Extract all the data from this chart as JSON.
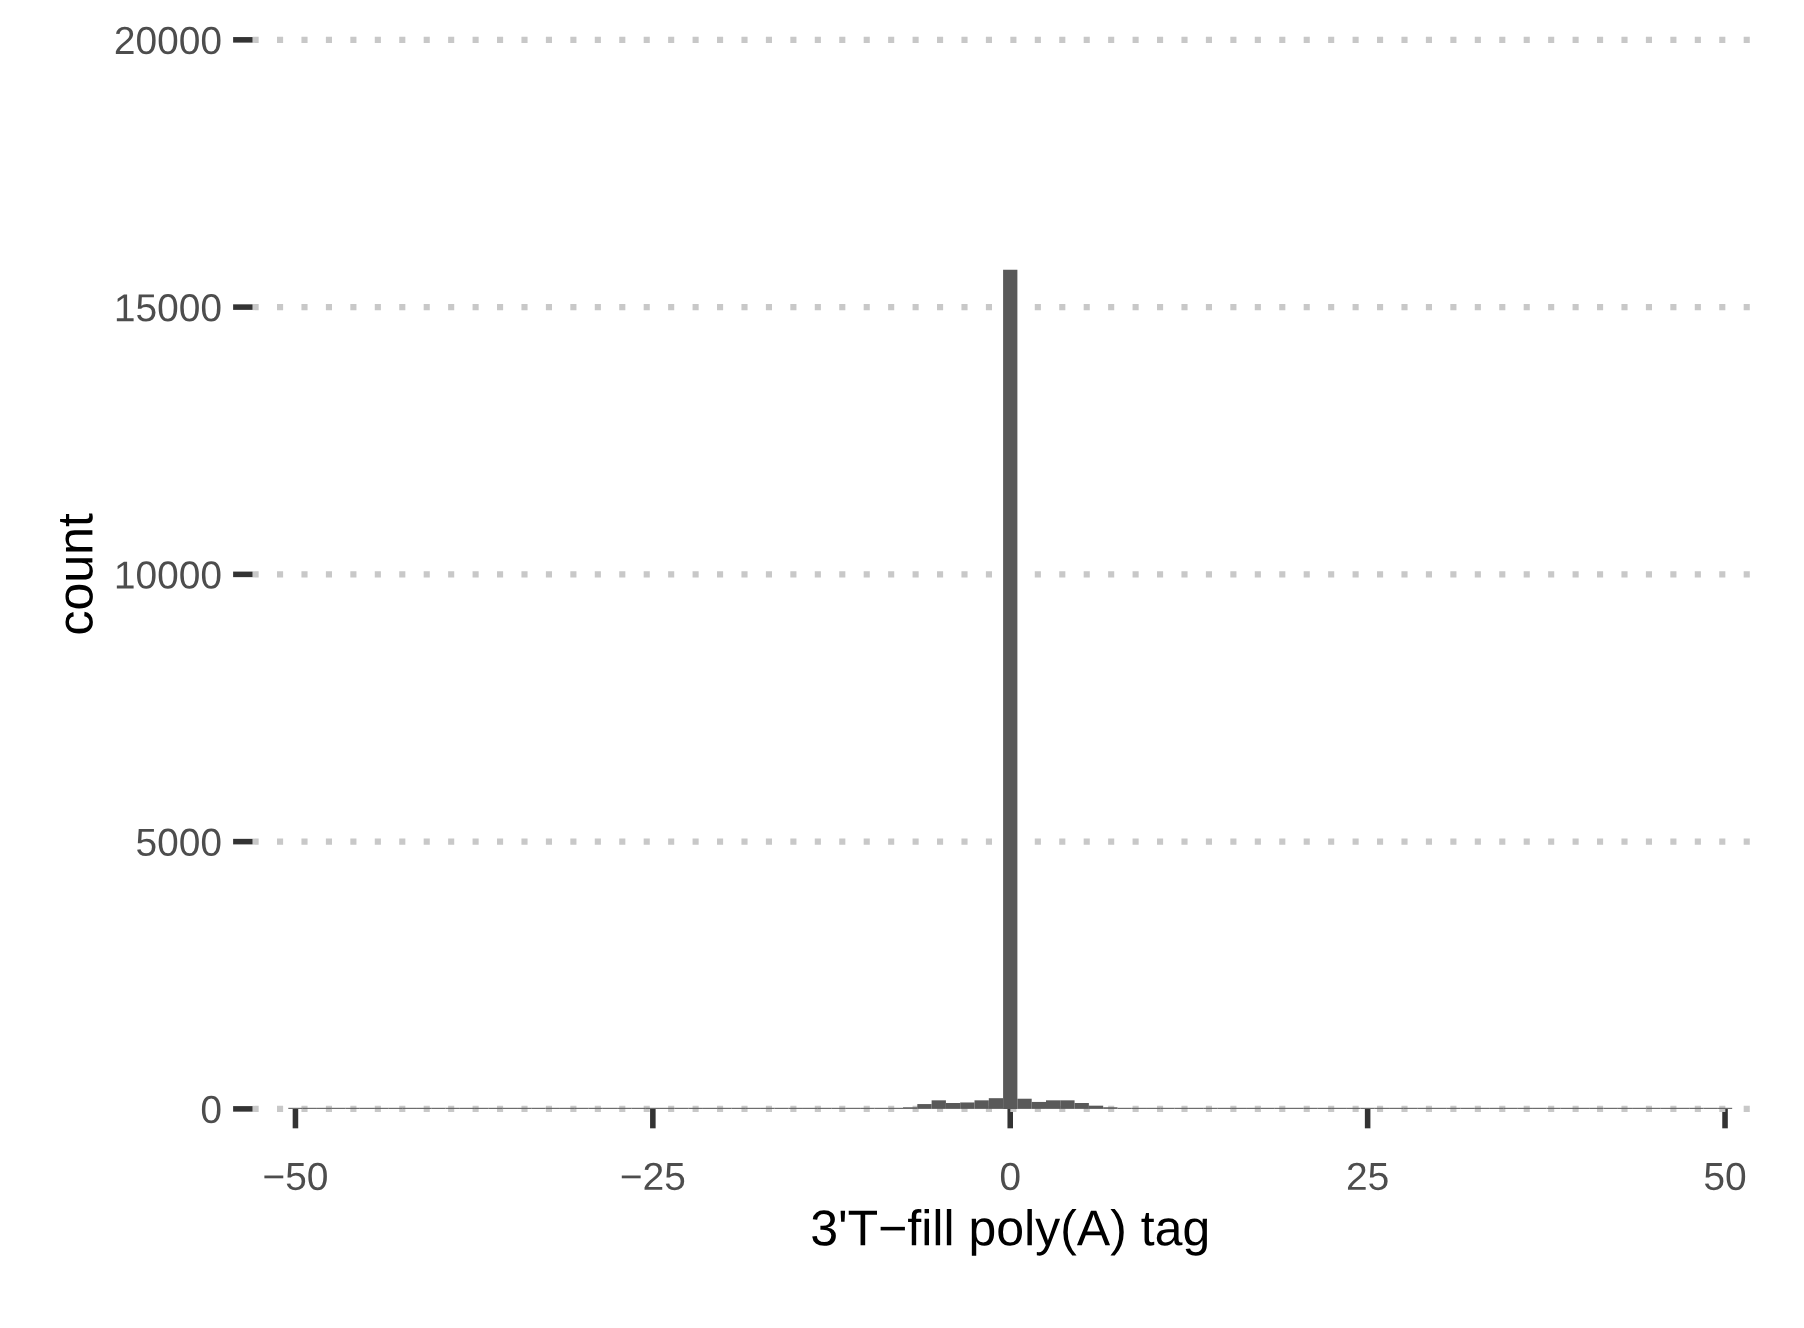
{
  "chart_data": {
    "type": "histogram",
    "xlabel": "3'T−fill poly(A) tag",
    "ylabel": "count",
    "color": "#595959",
    "bins": [
      -50.5,
      -49.5,
      -48.5,
      -47.5,
      -46.5,
      -45.5,
      -44.5,
      -43.5,
      -42.5,
      -41.5,
      -40.5,
      -39.5,
      -38.5,
      -37.5,
      -36.5,
      -35.5,
      -34.5,
      -33.5,
      -32.5,
      -31.5,
      -30.5,
      -29.5,
      -28.5,
      -27.5,
      -26.5,
      -25.5,
      -24.5,
      -23.5,
      -22.5,
      -21.5,
      -20.5,
      -19.5,
      -18.5,
      -17.5,
      -16.5,
      -15.5,
      -14.5,
      -13.5,
      -12.5,
      -11.5,
      -10.5,
      -9.5,
      -8.5,
      -7.5,
      -6.5,
      -5.5,
      -4.5,
      -3.5,
      -2.5,
      -1.5,
      -0.5,
      0.5,
      1.5,
      2.5,
      3.5,
      4.5,
      5.5,
      6.5,
      7.5,
      8.5,
      9.5,
      10.5,
      11.5,
      12.5,
      13.5,
      14.5,
      15.5,
      16.5,
      17.5,
      18.5,
      19.5,
      20.5,
      21.5,
      22.5,
      23.5,
      24.5,
      25.5,
      26.5,
      27.5,
      28.5,
      29.5,
      30.5,
      31.5,
      32.5,
      33.5,
      34.5,
      35.5,
      36.5,
      37.5,
      38.5,
      39.5,
      40.5,
      41.5,
      42.5,
      43.5,
      44.5,
      45.5,
      46.5,
      47.5,
      48.5,
      49.5,
      50.5
    ],
    "values": [
      20,
      20,
      20,
      20,
      20,
      20,
      20,
      20,
      20,
      20,
      20,
      20,
      20,
      20,
      20,
      20,
      20,
      20,
      20,
      20,
      20,
      20,
      20,
      20,
      20,
      20,
      20,
      20,
      20,
      20,
      20,
      20,
      20,
      20,
      20,
      20,
      20,
      20,
      20,
      20,
      20,
      20,
      20,
      30,
      90,
      160,
      110,
      120,
      160,
      200,
      15700,
      190,
      130,
      160,
      160,
      110,
      60,
      30,
      20,
      20,
      20,
      20,
      20,
      20,
      20,
      20,
      20,
      20,
      20,
      20,
      20,
      20,
      20,
      20,
      20,
      20,
      20,
      20,
      20,
      20,
      20,
      20,
      20,
      20,
      20,
      20,
      20,
      20,
      20,
      20,
      20,
      20,
      20,
      20,
      20,
      20,
      20,
      20,
      20,
      20,
      20
    ],
    "xlim": [
      -53,
      53
    ],
    "ylim": [
      0,
      20000
    ],
    "xticks": [
      {
        "value": -50,
        "label": "−50"
      },
      {
        "value": -25,
        "label": "−25"
      },
      0,
      25,
      50
    ],
    "yticks": [
      0,
      5000,
      10000,
      15000,
      20000
    ],
    "grid": "y"
  }
}
